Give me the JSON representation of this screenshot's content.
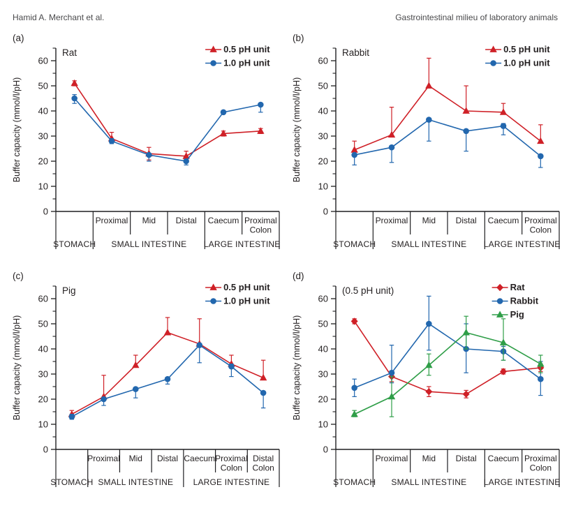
{
  "header": {
    "left": "Hamid A. Merchant et al.",
    "right": "Gastrointestinal milieu of laboratory animals"
  },
  "colors": {
    "red": "#cf2027",
    "blue": "#2267ae",
    "green": "#2f9e48",
    "axis": "#1f1f21",
    "text": "#231f20"
  },
  "chart_data": [
    {
      "type": "line",
      "panel_label": "(a)",
      "title": "Rat",
      "ylabel": "Buffer capacity (mmol/l/pH)",
      "ylim": [
        0,
        60
      ],
      "yticks": [
        0,
        10,
        20,
        30,
        40,
        50,
        60
      ],
      "categories": [
        "",
        "Proximal",
        "Mid",
        "Distal",
        "Caecum",
        "Proximal\nColon"
      ],
      "groups": [
        {
          "label": "STOMACH",
          "from": 0,
          "to": 0
        },
        {
          "label": "SMALL INTESTINE",
          "from": 1,
          "to": 3
        },
        {
          "label": "LARGE INTESTINE",
          "from": 4,
          "to": 5
        }
      ],
      "legend_position": "top-right",
      "series": [
        {
          "name": "0.5 pH unit",
          "color": "#cf2027",
          "marker": "triangle",
          "values": [
            51,
            29,
            23,
            22,
            31,
            32
          ],
          "err_up": [
            1,
            2.5,
            2.5,
            2,
            1,
            1
          ],
          "err_down": [
            1,
            1,
            2.5,
            1,
            1,
            1
          ]
        },
        {
          "name": "1.0 pH unit",
          "color": "#2267ae",
          "marker": "circle",
          "values": [
            45,
            28,
            22.5,
            20,
            39.5,
            42.5
          ],
          "err_up": [
            1.5,
            1,
            0,
            0,
            0,
            0
          ],
          "err_down": [
            2,
            1,
            2.5,
            1.5,
            0,
            3
          ]
        }
      ]
    },
    {
      "type": "line",
      "panel_label": "(b)",
      "title": "Rabbit",
      "ylabel": "Buffer capacity (mmol/l/pH)",
      "ylim": [
        0,
        60
      ],
      "yticks": [
        0,
        10,
        20,
        30,
        40,
        50,
        60
      ],
      "categories": [
        "",
        "Proximal",
        "Mid",
        "Distal",
        "Caecum",
        "Proximal\nColon"
      ],
      "groups": [
        {
          "label": "STOMACH",
          "from": 0,
          "to": 0
        },
        {
          "label": "SMALL INTESTINE",
          "from": 1,
          "to": 3
        },
        {
          "label": "LARGE INTESTINE",
          "from": 4,
          "to": 5
        }
      ],
      "legend_position": "top-right",
      "series": [
        {
          "name": "0.5 pH unit",
          "color": "#cf2027",
          "marker": "triangle",
          "values": [
            24.5,
            30.5,
            50,
            40,
            39.5,
            28
          ],
          "err_up": [
            3.5,
            11,
            11,
            10,
            3.5,
            6.5
          ],
          "err_down": [
            2,
            0,
            0,
            0,
            0,
            0
          ]
        },
        {
          "name": "1.0 pH unit",
          "color": "#2267ae",
          "marker": "circle",
          "values": [
            22.5,
            25.5,
            36.5,
            32,
            34,
            22
          ],
          "err_up": [
            0,
            0,
            0,
            0,
            1,
            0
          ],
          "err_down": [
            4,
            6,
            8.5,
            8,
            3.5,
            4.5
          ]
        }
      ]
    },
    {
      "type": "line",
      "panel_label": "(c)",
      "title": "Pig",
      "ylabel": "Buffer capacity (mmol/l/pH)",
      "ylim": [
        0,
        60
      ],
      "yticks": [
        0,
        10,
        20,
        30,
        40,
        50,
        60
      ],
      "categories": [
        "",
        "Proximal",
        "Mid",
        "Distal",
        "Caecum",
        "Proximal\nColon",
        "Distal\nColon"
      ],
      "groups": [
        {
          "label": "STOMACH",
          "from": 0,
          "to": 0
        },
        {
          "label": "SMALL INTESTINE",
          "from": 1,
          "to": 3
        },
        {
          "label": "LARGE INTESTINE",
          "from": 4,
          "to": 6
        }
      ],
      "legend_position": "top-right",
      "series": [
        {
          "name": "0.5 pH unit",
          "color": "#cf2027",
          "marker": "triangle",
          "values": [
            14,
            21,
            33.5,
            46.5,
            42,
            34,
            28.5
          ],
          "err_up": [
            1.5,
            8.5,
            4,
            6,
            10,
            3.5,
            7
          ],
          "err_down": [
            1,
            1,
            0,
            0,
            0,
            1,
            0
          ]
        },
        {
          "name": "1.0 pH unit",
          "color": "#2267ae",
          "marker": "circle",
          "values": [
            13,
            20,
            24,
            28,
            41.5,
            33,
            22.5
          ],
          "err_up": [
            1,
            0,
            0,
            0,
            0,
            1,
            0
          ],
          "err_down": [
            1,
            2.5,
            3.5,
            2,
            7,
            4,
            6
          ]
        }
      ]
    },
    {
      "type": "line",
      "panel_label": "(d)",
      "title": "(0.5 pH unit)",
      "ylabel": "Buffer capacity (mmol/l/pH)",
      "ylim": [
        0,
        60
      ],
      "yticks": [
        0,
        10,
        20,
        30,
        40,
        50,
        60
      ],
      "categories": [
        "",
        "Proximal",
        "Mid",
        "Distal",
        "Caecum",
        "Proximal\nColon"
      ],
      "groups": [
        {
          "label": "STOMACH",
          "from": 0,
          "to": 0
        },
        {
          "label": "SMALL INTESTINE",
          "from": 1,
          "to": 3
        },
        {
          "label": "LARGE INTESTINE",
          "from": 4,
          "to": 5
        }
      ],
      "legend_position": "top-right",
      "series": [
        {
          "name": "Rat",
          "color": "#cf2027",
          "marker": "diamond",
          "values": [
            51,
            29,
            23,
            22,
            31,
            32.5
          ],
          "err_up": [
            1,
            2,
            2,
            1.5,
            1,
            1.5
          ],
          "err_down": [
            1,
            2,
            2,
            1.5,
            1,
            1.5
          ]
        },
        {
          "name": "Rabbit",
          "color": "#2267ae",
          "marker": "circle",
          "values": [
            24.5,
            30.5,
            50,
            40,
            39,
            28
          ],
          "err_up": [
            3.5,
            11,
            11,
            10,
            2,
            7
          ],
          "err_down": [
            3.5,
            4,
            10.5,
            9.5,
            3.5,
            6.5
          ]
        },
        {
          "name": "Pig",
          "color": "#2f9e48",
          "marker": "triangle",
          "values": [
            14,
            21,
            33.5,
            46.5,
            42.5,
            34
          ],
          "err_up": [
            1.5,
            8,
            4.5,
            6.5,
            9.5,
            3.5
          ],
          "err_down": [
            1,
            8,
            4,
            6.5,
            7,
            3.5
          ]
        }
      ]
    }
  ]
}
